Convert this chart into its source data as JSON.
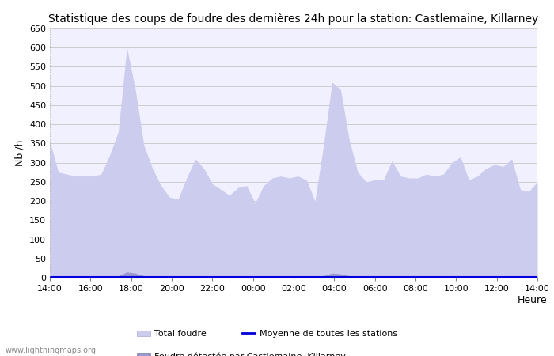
{
  "title": "Statistique des coups de foudre des dernières 24h pour la station: Castlemaine, Killarney",
  "xlabel": "Heure",
  "ylabel": "Nb /h",
  "ylim": [
    0,
    650
  ],
  "yticks": [
    0,
    50,
    100,
    150,
    200,
    250,
    300,
    350,
    400,
    450,
    500,
    550,
    600,
    650
  ],
  "x_labels": [
    "14:00",
    "16:00",
    "18:00",
    "20:00",
    "22:00",
    "00:00",
    "02:00",
    "04:00",
    "06:00",
    "08:00",
    "10:00",
    "12:00",
    "14:00"
  ],
  "background_color": "#ffffff",
  "plot_background": "#f0f0ff",
  "grid_color": "#cccccc",
  "fill_total_color": "#ccccee",
  "fill_local_color": "#9999cc",
  "line_moyenne_color": "#0000dd",
  "watermark": "www.lightningmaps.org",
  "total_foudre": [
    355,
    275,
    270,
    265,
    265,
    265,
    270,
    320,
    380,
    600,
    490,
    345,
    285,
    240,
    210,
    205,
    260,
    310,
    285,
    245,
    230,
    215,
    235,
    240,
    195,
    240,
    260,
    265,
    260,
    265,
    255,
    200,
    345,
    510,
    490,
    360,
    275,
    250,
    255,
    255,
    305,
    265,
    260,
    260,
    270,
    265,
    270,
    300,
    315,
    255,
    265,
    285,
    295,
    290,
    310,
    230,
    225,
    250
  ],
  "local_foudre": [
    5,
    5,
    5,
    5,
    5,
    5,
    5,
    5,
    5,
    15,
    12,
    5,
    5,
    5,
    5,
    5,
    5,
    5,
    5,
    5,
    5,
    5,
    5,
    5,
    5,
    5,
    5,
    5,
    5,
    5,
    5,
    5,
    5,
    12,
    10,
    5,
    5,
    5,
    5,
    5,
    5,
    5,
    5,
    5,
    5,
    5,
    5,
    5,
    5,
    5,
    5,
    5,
    5,
    5,
    5,
    5,
    5,
    5
  ],
  "moyenne": [
    3,
    3,
    3,
    3,
    3,
    3,
    3,
    3,
    3,
    3,
    3,
    3,
    3,
    3,
    3,
    3,
    3,
    3,
    3,
    3,
    3,
    3,
    3,
    3,
    3,
    3,
    3,
    3,
    3,
    3,
    3,
    3,
    3,
    3,
    3,
    3,
    3,
    3,
    3,
    3,
    3,
    3,
    3,
    3,
    3,
    3,
    3,
    3,
    3,
    3,
    3,
    3,
    3,
    3,
    3,
    3,
    3,
    3
  ],
  "n_hours": 24,
  "n_ticks": 13
}
